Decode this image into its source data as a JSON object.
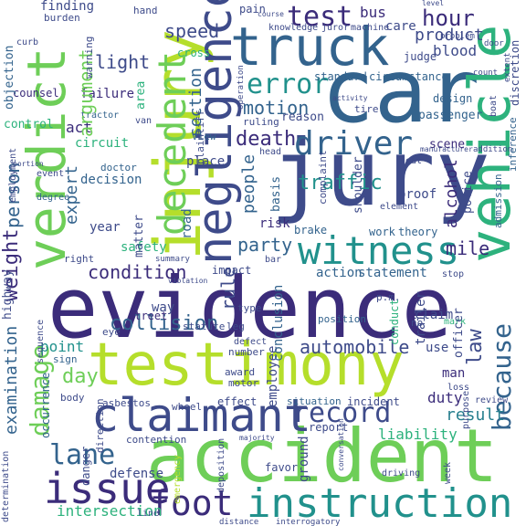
{
  "palette": {
    "navy": "#3b2c7a",
    "indigo": "#3e4b8a",
    "steel": "#33638d",
    "teal": "#277f8e",
    "sea": "#21918c",
    "green": "#2db27d",
    "lime": "#6ece58",
    "yellowgreen": "#b5de2b",
    "yellow": "#e0e32a"
  },
  "words": [
    {
      "text": "evidence",
      "color": "navy"
    },
    {
      "text": "jury",
      "color": "indigo"
    },
    {
      "text": "car",
      "color": "steel"
    },
    {
      "text": "accident",
      "color": "lime"
    },
    {
      "text": "testimony",
      "color": "yellowgreen"
    },
    {
      "text": "truck",
      "color": "steel"
    },
    {
      "text": "injury",
      "color": "yellowgreen"
    },
    {
      "text": "verdict",
      "color": "lime"
    },
    {
      "text": "vehicle",
      "color": "green"
    },
    {
      "text": "negligence",
      "color": "indigo"
    },
    {
      "text": "claimant",
      "color": "indigo"
    },
    {
      "text": "decedent",
      "color": "lime"
    },
    {
      "text": "instruction",
      "color": "sea"
    },
    {
      "text": "witness",
      "color": "sea"
    },
    {
      "text": "because",
      "color": "steel"
    },
    {
      "text": "driver",
      "color": "steel"
    },
    {
      "text": "issue",
      "color": "navy"
    },
    {
      "text": "foot",
      "color": "navy"
    },
    {
      "text": "lane",
      "color": "steel"
    },
    {
      "text": "record",
      "color": "indigo"
    },
    {
      "text": "damage",
      "color": "lime"
    },
    {
      "text": "error",
      "color": "sea"
    },
    {
      "text": "test",
      "color": "navy"
    },
    {
      "text": "verdict-small",
      "color": "teal"
    }
  ],
  "labels": {
    "w0": "evidence",
    "w1": "jury",
    "w2": "car",
    "w3": "accident",
    "w4": "testimony",
    "w5": "truck",
    "w6": "injury",
    "w7": "verdict",
    "w8": "vehicle",
    "w9": "negligence",
    "w10": "claimant",
    "w11": "decedent",
    "w12": "instruction",
    "w13": "witness",
    "w14": "because",
    "w15": "driver",
    "w16": "issue",
    "w17": "foot",
    "w18": "lane",
    "w19": "record",
    "w20": "damage",
    "w21": "error",
    "w22": "test",
    "w23": "speed",
    "w24": "hour",
    "w25": "bus",
    "w26": "care",
    "w27": "product",
    "w28": "blood",
    "w29": "light",
    "w30": "argument",
    "w31": "motion",
    "w32": "section",
    "w33": "death",
    "w34": "people",
    "w35": "traffic",
    "w36": "alcohol",
    "w37": "party",
    "w38": "condition",
    "w39": "mile",
    "w40": "weight",
    "w41": "person",
    "w42": "expert",
    "w43": "rule",
    "w44": "law",
    "w45": "collision",
    "w46": "automobile",
    "w47": "point",
    "w48": "day",
    "w49": "result",
    "w50": "liability",
    "w51": "examination",
    "w52": "duty",
    "w53": "intersection",
    "w54": "defense",
    "w55": "safety",
    "w56": "circuit",
    "w57": "decision",
    "w58": "failure",
    "w59": "counsel",
    "w60": "objection",
    "w61": "finding",
    "w62": "hand",
    "w63": "pain",
    "w64": "cross",
    "w65": "place",
    "w66": "view",
    "w67": "road",
    "w68": "matter",
    "w69": "year",
    "w70": "act",
    "w71": "street",
    "w72": "way",
    "w73": "impact",
    "w74": "action",
    "w75": "statement",
    "w76": "claim",
    "w77": "use",
    "w78": "man",
    "w79": "theory",
    "w80": "work",
    "w81": "brake",
    "w82": "risk",
    "w83": "proof",
    "w84": "basis",
    "w85": "shoulder",
    "w86": "scene",
    "w87": "design",
    "w88": "judge",
    "w89": "passenger",
    "w90": "reason",
    "w91": "standard",
    "w92": "circumstance",
    "w93": "control",
    "w94": "area",
    "w95": "situation",
    "w96": "incident",
    "w97": "report",
    "w98": "ground",
    "w99": "favor",
    "w100": "employee",
    "w101": "conclusion",
    "w102": "asbestos",
    "w103": "wheel",
    "w104": "effect",
    "w105": "award",
    "w106": "motor",
    "w107": "sign",
    "w108": "occurrence",
    "w109": "direction",
    "w110": "danger",
    "w111": "highway",
    "w112": "no",
    "w113": "type",
    "w114": "position",
    "w115": "conduct",
    "w116": "trailer",
    "w117": "officer",
    "w118": "police",
    "w119": "admission",
    "w120": "inference",
    "w121": "discretion",
    "w122": "doctor",
    "w123": "tractor",
    "w124": "warning",
    "w125": "burden",
    "w126": "curb",
    "w127": "event",
    "w128": "degree",
    "w129": "plaintiff",
    "w130": "body",
    "w131": "contention",
    "w132": "eye",
    "w133": "number",
    "w134": "defect",
    "w135": "statute",
    "w136": "leg",
    "w137": "employment",
    "w138": "portion",
    "w139": "right",
    "w140": "sequence",
    "w141": "signal",
    "w142": "knowledge",
    "w143": "juror",
    "w144": "machine",
    "w145": "problem",
    "w146": "course",
    "w147": "level",
    "w148": "door",
    "w149": "extent",
    "w150": "boat",
    "w151": "count",
    "w152": "fire",
    "w153": "ruling",
    "w154": "operation",
    "w155": "head",
    "w156": "complaint",
    "w157": "element",
    "w158": "seat",
    "w159": "review",
    "w160": "loss",
    "w161": "purpose",
    "w162": "driving",
    "w163": "week",
    "w164": "conversation",
    "w165": "deposition",
    "w166": "interrogatory",
    "w167": "distance",
    "w168": "emergency",
    "w169": "determination",
    "w170": "majority",
    "w171": "summary",
    "w172": "violation",
    "w173": "manufacturer",
    "w174": "evening",
    "w175": "addition",
    "w176": "mark",
    "w177": "p.m.",
    "w178": "stop",
    "w179": "bar",
    "w180": "activity",
    "w181": "tire",
    "w182": "van",
    "w183": "line",
    "w184": "gas",
    "w185": "sheriff",
    "w186": "physician",
    "w187": "mph"
  }
}
